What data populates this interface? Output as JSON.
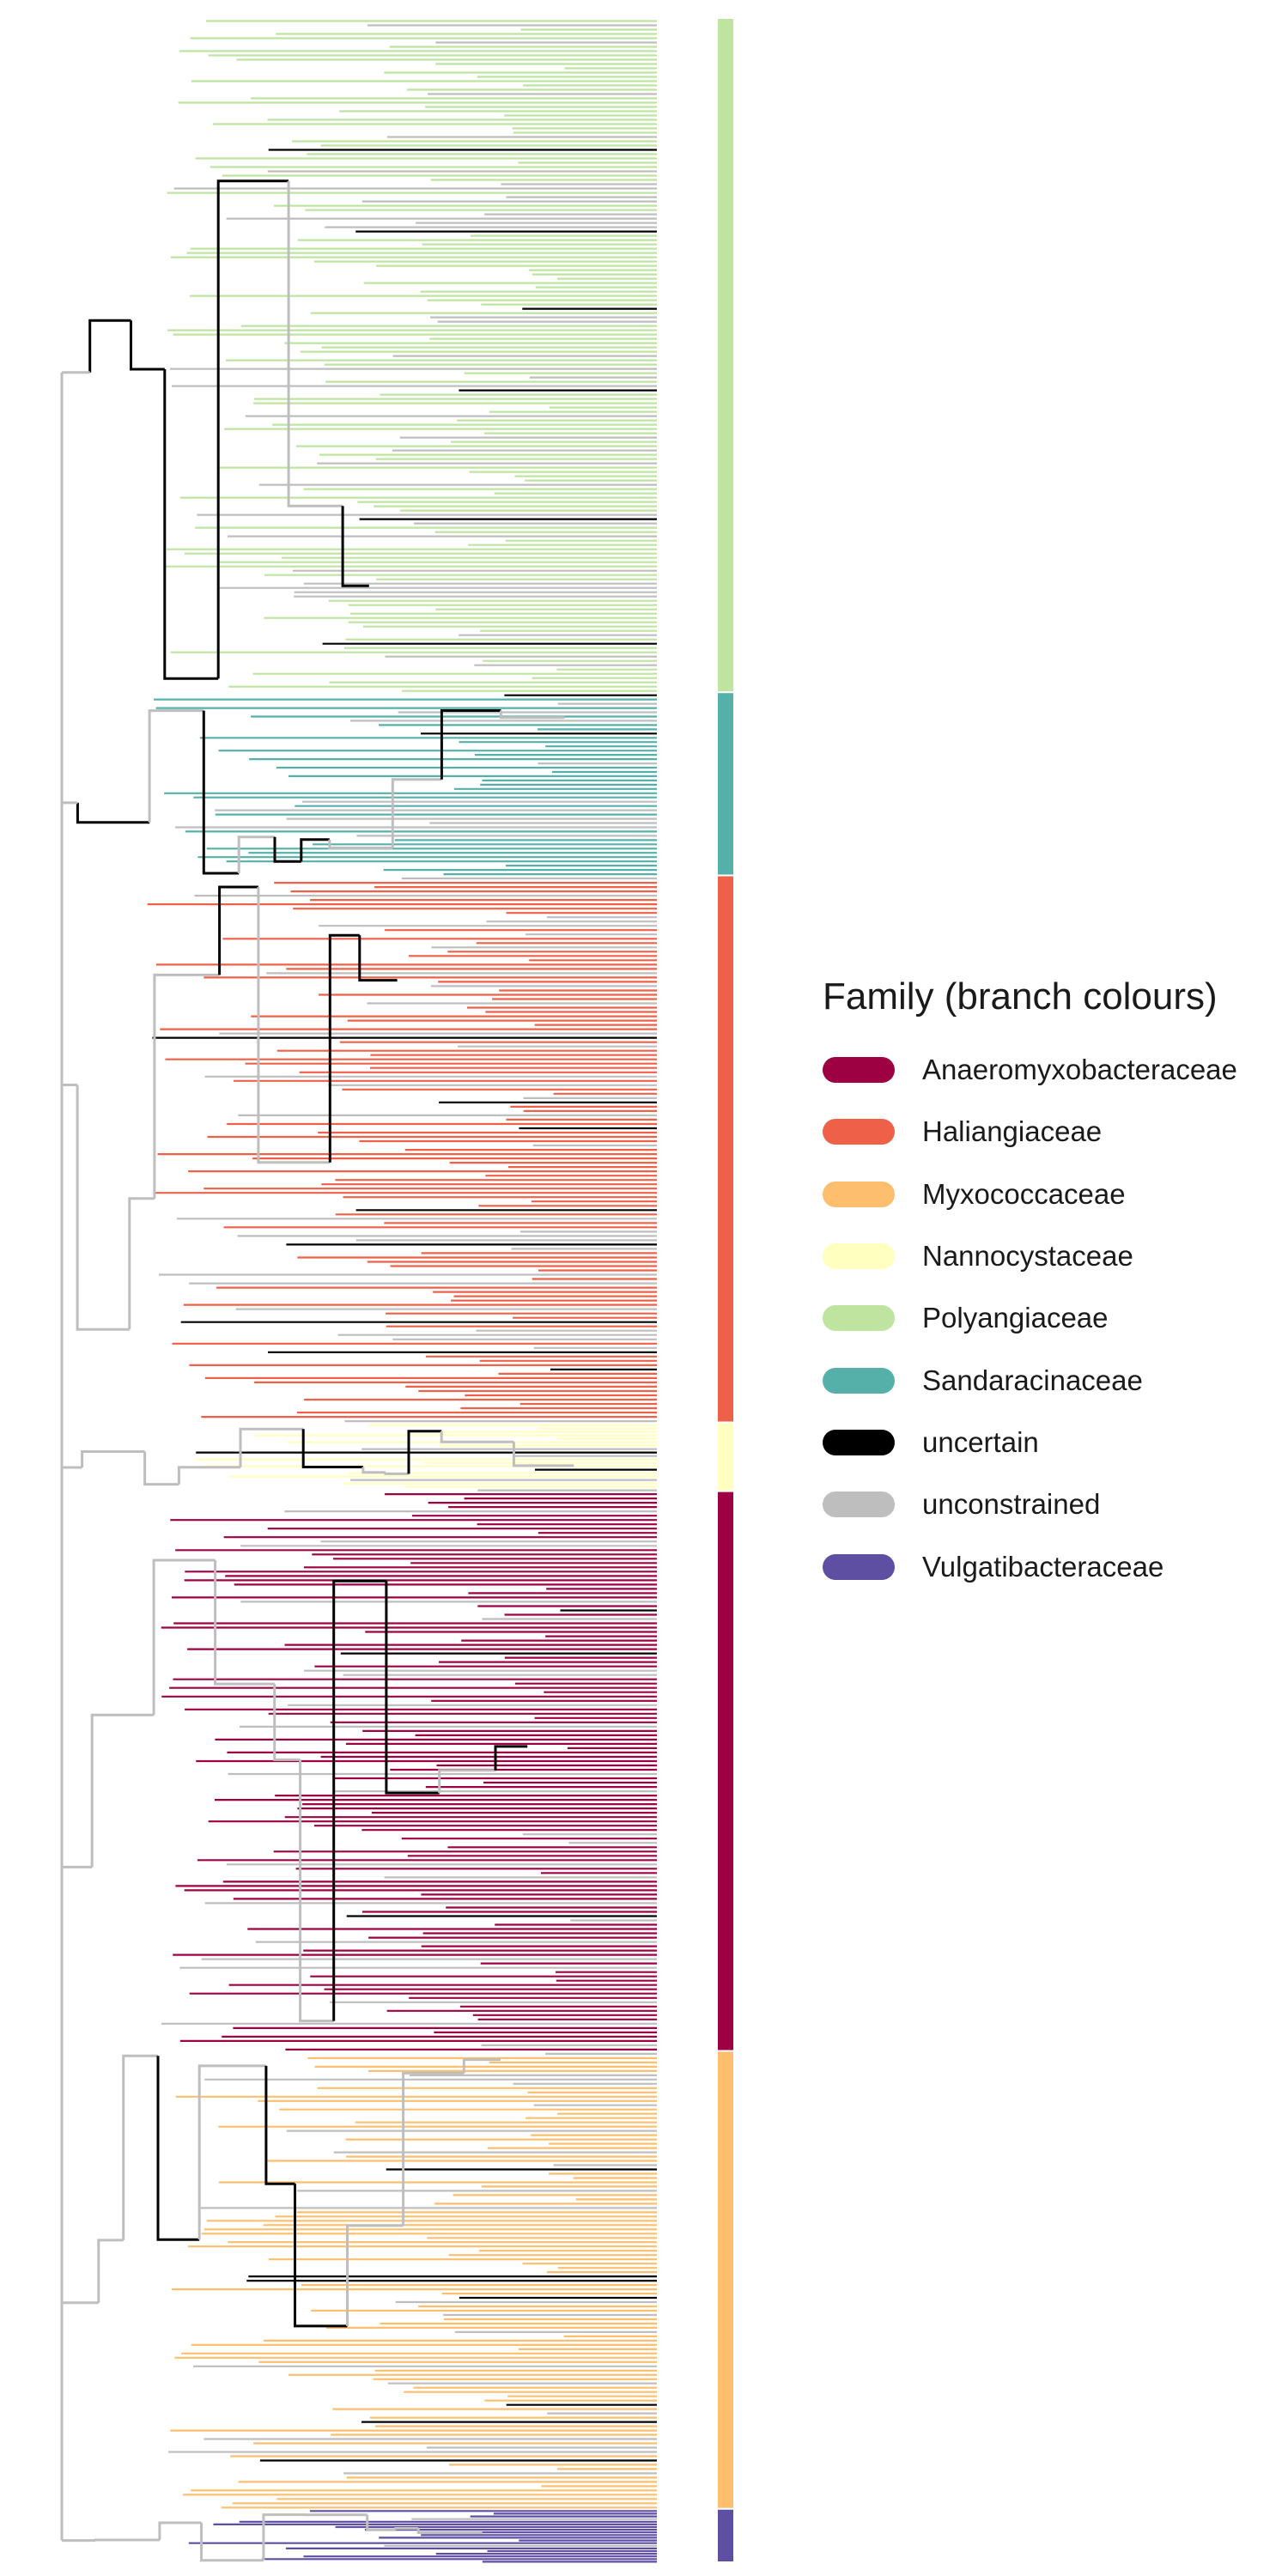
{
  "legend": {
    "title": "Family (branch colours)",
    "items": [
      {
        "label": "Anaeromyxobacteraceae",
        "color": "#9E0142"
      },
      {
        "label": "Haliangiaceae",
        "color": "#EE6148"
      },
      {
        "label": "Myxococcaceae",
        "color": "#FDBE6E"
      },
      {
        "label": "Nannocystaceae",
        "color": "#FFFFBF"
      },
      {
        "label": "Polyangiaceae",
        "color": "#BEE4A0"
      },
      {
        "label": "Sandaracinaceae",
        "color": "#55B0AA"
      },
      {
        "label": "uncertain",
        "color": "#000000"
      },
      {
        "label": "unconstrained",
        "color": "#BEBEBE"
      },
      {
        "label": "Vulgatibacteraceae",
        "color": "#5E4FA2"
      }
    ]
  },
  "clades": [
    {
      "family": "Polyangiaceae",
      "color": "#BEE4A0",
      "share": 0.265
    },
    {
      "family": "Sandaracinaceae",
      "color": "#55B0AA",
      "share": 0.072
    },
    {
      "family": "Haliangiaceae",
      "color": "#EE6148",
      "share": 0.215
    },
    {
      "family": "Nannocystaceae",
      "color": "#FFFFBF",
      "share": 0.027
    },
    {
      "family": "Anaeromyxobacteraceae",
      "color": "#9E0142",
      "share": 0.22
    },
    {
      "family": "Myxococcaceae",
      "color": "#FDBE6E",
      "share": 0.18
    },
    {
      "family": "Vulgatibacteraceae",
      "color": "#5E4FA2",
      "share": 0.021
    }
  ]
}
